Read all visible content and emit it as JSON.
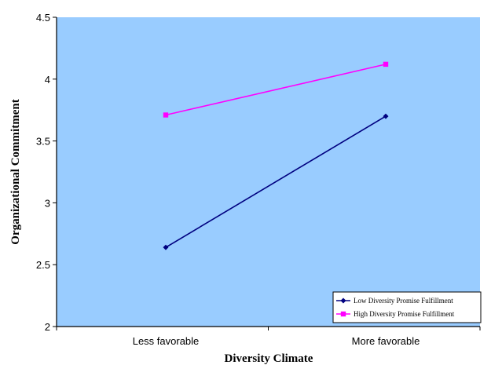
{
  "chart_data": {
    "type": "line",
    "title": "",
    "xlabel": "Diversity Climate",
    "ylabel": "Organizational Commitment",
    "categories": [
      "Less favorable",
      "More favorable"
    ],
    "ylim": [
      2,
      4.5
    ],
    "yticks": [
      "2",
      "2.5",
      "3",
      "3.5",
      "4",
      "4.5"
    ],
    "grid": false,
    "legend_position": "bottom-right",
    "plot_background": "#99CCFF",
    "series": [
      {
        "name": "Low Diversity Promise Fulfillment",
        "values": [
          2.64,
          3.7
        ],
        "color": "#000080",
        "marker": "diamond"
      },
      {
        "name": "High Diversity Promise Fulfillment",
        "values": [
          3.71,
          4.12
        ],
        "color": "#FF00FF",
        "marker": "square"
      }
    ]
  }
}
